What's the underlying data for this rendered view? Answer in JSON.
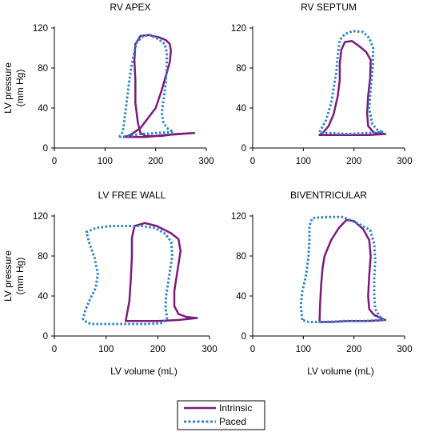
{
  "legend": {
    "items": [
      {
        "label": "Intrinsic",
        "color": "#7b1b7b",
        "style": "solid"
      },
      {
        "label": "Paced",
        "color": "#2e83c8",
        "style": "dotted"
      }
    ]
  },
  "chart_data": [
    {
      "type": "line",
      "title": "RV APEX",
      "xlabel": "",
      "ylabel": "LV pressure\n(mm Hg)",
      "xlim": [
        0,
        300
      ],
      "ylim": [
        0,
        120
      ],
      "xticks": [
        0,
        100,
        200,
        300
      ],
      "yticks": [
        0,
        40,
        80,
        120
      ],
      "series": [
        {
          "name": "Intrinsic",
          "points": [
            [
              137,
              11
            ],
            [
              150,
              13
            ],
            [
              170,
              20
            ],
            [
              200,
              40
            ],
            [
              212,
              58
            ],
            [
              220,
              72
            ],
            [
              228,
              86
            ],
            [
              230,
              97
            ],
            [
              228,
              104
            ],
            [
              220,
              108
            ],
            [
              205,
              111
            ],
            [
              185,
              113
            ],
            [
              170,
              112
            ],
            [
              160,
              104
            ],
            [
              158,
              88
            ],
            [
              160,
              68
            ],
            [
              160,
              45
            ],
            [
              165,
              25
            ],
            [
              170,
              15
            ],
            [
              180,
              12
            ],
            [
              210,
              12
            ],
            [
              240,
              14
            ],
            [
              276,
              15
            ],
            [
              250,
              14
            ],
            [
              220,
              13
            ],
            [
              200,
              12
            ],
            [
              180,
              11
            ],
            [
              137,
              11
            ]
          ]
        },
        {
          "name": "Paced",
          "points": [
            [
              128,
              11
            ],
            [
              135,
              16
            ],
            [
              140,
              35
            ],
            [
              145,
              55
            ],
            [
              150,
              75
            ],
            [
              156,
              92
            ],
            [
              162,
              105
            ],
            [
              175,
              112
            ],
            [
              190,
              113
            ],
            [
              205,
              109
            ],
            [
              218,
              104
            ],
            [
              222,
              95
            ],
            [
              222,
              82
            ],
            [
              220,
              65
            ],
            [
              216,
              50
            ],
            [
              212,
              35
            ],
            [
              215,
              26
            ],
            [
              222,
              20
            ],
            [
              235,
              16
            ],
            [
              200,
              15
            ],
            [
              170,
              14
            ],
            [
              150,
              12
            ],
            [
              128,
              11
            ]
          ]
        }
      ]
    },
    {
      "type": "line",
      "title": "RV SEPTUM",
      "xlabel": "",
      "ylabel": "",
      "xlim": [
        0,
        300
      ],
      "ylim": [
        0,
        120
      ],
      "xticks": [
        0,
        100,
        200,
        300
      ],
      "yticks": [
        0,
        40,
        80,
        120
      ],
      "series": [
        {
          "name": "Intrinsic",
          "points": [
            [
              132,
              13
            ],
            [
              140,
              16
            ],
            [
              150,
              22
            ],
            [
              160,
              34
            ],
            [
              168,
              52
            ],
            [
              172,
              68
            ],
            [
              172,
              84
            ],
            [
              175,
              98
            ],
            [
              182,
              106
            ],
            [
              196,
              107
            ],
            [
              210,
              102
            ],
            [
              224,
              96
            ],
            [
              233,
              88
            ],
            [
              232,
              70
            ],
            [
              228,
              52
            ],
            [
              226,
              35
            ],
            [
              228,
              22
            ],
            [
              240,
              15
            ],
            [
              262,
              14
            ],
            [
              230,
              13
            ],
            [
              190,
              13
            ],
            [
              150,
              13
            ],
            [
              132,
              13
            ]
          ]
        },
        {
          "name": "Paced",
          "points": [
            [
              132,
              16
            ],
            [
              145,
              28
            ],
            [
              155,
              45
            ],
            [
              160,
              60
            ],
            [
              165,
              75
            ],
            [
              168,
              92
            ],
            [
              172,
              108
            ],
            [
              182,
              114
            ],
            [
              198,
              117
            ],
            [
              218,
              116
            ],
            [
              230,
              110
            ],
            [
              238,
              100
            ],
            [
              237,
              80
            ],
            [
              233,
              60
            ],
            [
              230,
              40
            ],
            [
              236,
              24
            ],
            [
              248,
              17
            ],
            [
              258,
              16
            ],
            [
              225,
              15
            ],
            [
              185,
              14
            ],
            [
              155,
              15
            ],
            [
              140,
              15
            ],
            [
              132,
              16
            ]
          ]
        }
      ]
    },
    {
      "type": "line",
      "title": "LV FREE WALL",
      "xlabel": "LV volume (mL)",
      "ylabel": "LV pressure\n(mm Hg)",
      "xlim": [
        0,
        300
      ],
      "ylim": [
        0,
        120
      ],
      "xticks": [
        0,
        100,
        200,
        300
      ],
      "yticks": [
        0,
        40,
        80,
        120
      ],
      "series": [
        {
          "name": "Intrinsic",
          "points": [
            [
              138,
              15
            ],
            [
              145,
              35
            ],
            [
              148,
              58
            ],
            [
              150,
              80
            ],
            [
              150,
              98
            ],
            [
              155,
              110
            ],
            [
              175,
              113
            ],
            [
              198,
              110
            ],
            [
              225,
              103
            ],
            [
              240,
              97
            ],
            [
              244,
              85
            ],
            [
              238,
              65
            ],
            [
              232,
              45
            ],
            [
              232,
              30
            ],
            [
              240,
              22
            ],
            [
              256,
              19
            ],
            [
              276,
              18
            ],
            [
              240,
              16
            ],
            [
              200,
              15
            ],
            [
              170,
              15
            ],
            [
              138,
              15
            ]
          ]
        },
        {
          "name": "Paced",
          "points": [
            [
              55,
              16
            ],
            [
              60,
              26
            ],
            [
              70,
              38
            ],
            [
              80,
              48
            ],
            [
              84,
              62
            ],
            [
              78,
              78
            ],
            [
              68,
              92
            ],
            [
              62,
              104
            ],
            [
              80,
              108
            ],
            [
              110,
              110
            ],
            [
              140,
              110
            ],
            [
              168,
              110
            ],
            [
              195,
              108
            ],
            [
              215,
              102
            ],
            [
              226,
              94
            ],
            [
              228,
              80
            ],
            [
              222,
              60
            ],
            [
              216,
              40
            ],
            [
              215,
              28
            ],
            [
              218,
              18
            ],
            [
              210,
              13
            ],
            [
              180,
              12
            ],
            [
              140,
              12
            ],
            [
              100,
              12
            ],
            [
              70,
              12
            ],
            [
              55,
              16
            ]
          ]
        }
      ]
    },
    {
      "type": "line",
      "title": "BIVENTRICULAR",
      "xlabel": "LV volume (mL)",
      "ylabel": "",
      "xlim": [
        0,
        300
      ],
      "ylim": [
        0,
        120
      ],
      "xticks": [
        0,
        100,
        200,
        300
      ],
      "yticks": [
        0,
        40,
        80,
        120
      ],
      "series": [
        {
          "name": "Intrinsic",
          "points": [
            [
              132,
              14
            ],
            [
              133,
              30
            ],
            [
              135,
              50
            ],
            [
              138,
              68
            ],
            [
              142,
              80
            ],
            [
              155,
              96
            ],
            [
              170,
              108
            ],
            [
              185,
              116
            ],
            [
              200,
              115
            ],
            [
              218,
              107
            ],
            [
              230,
              96
            ],
            [
              233,
              80
            ],
            [
              230,
              60
            ],
            [
              228,
              40
            ],
            [
              230,
              27
            ],
            [
              240,
              21
            ],
            [
              262,
              16
            ],
            [
              230,
              15
            ],
            [
              190,
              15
            ],
            [
              155,
              14
            ],
            [
              132,
              14
            ]
          ]
        },
        {
          "name": "Paced",
          "points": [
            [
              98,
              16
            ],
            [
              95,
              30
            ],
            [
              98,
              45
            ],
            [
              105,
              60
            ],
            [
              110,
              78
            ],
            [
              112,
              95
            ],
            [
              112,
              110
            ],
            [
              118,
              118
            ],
            [
              145,
              119
            ],
            [
              178,
              119
            ],
            [
              206,
              113
            ],
            [
              232,
              106
            ],
            [
              240,
              92
            ],
            [
              242,
              75
            ],
            [
              240,
              58
            ],
            [
              240,
              40
            ],
            [
              242,
              27
            ],
            [
              250,
              20
            ],
            [
              258,
              16
            ],
            [
              220,
              15
            ],
            [
              180,
              15
            ],
            [
              140,
              14
            ],
            [
              110,
              14
            ],
            [
              98,
              16
            ]
          ]
        }
      ]
    }
  ]
}
